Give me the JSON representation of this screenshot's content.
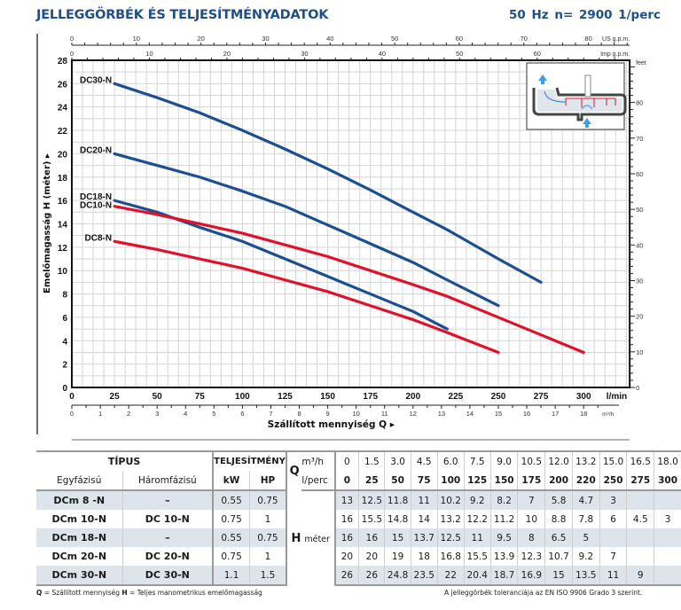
{
  "header": {
    "title": "JELLEGGÖRBÉK ÉS TELJESÍTMÉNYADATOK",
    "subtitle": "50 Hz   n= 2900  1/perc"
  },
  "chart_data": {
    "type": "line",
    "title": "JELLEGGÖRBÉK ÉS TELJESÍTMÉNYADATOK",
    "xlabel": "Szállított mennyiség  Q ▸",
    "ylabel": "Emelőmagasság  H  (méter) ▸",
    "x_unit": "l/min",
    "xlim": [
      0,
      327
    ],
    "ylim": [
      0,
      28
    ],
    "grid": true,
    "x_ticks": [
      0,
      25,
      50,
      75,
      100,
      125,
      150,
      175,
      200,
      225,
      250,
      275,
      300
    ],
    "y_ticks": [
      0,
      2,
      4,
      6,
      8,
      10,
      12,
      14,
      16,
      18,
      20,
      22,
      24,
      26,
      28
    ],
    "secondary_axes": {
      "m3h": {
        "label": "m³/h",
        "ticks": [
          0,
          1,
          2,
          3,
          4,
          5,
          6,
          7,
          8,
          9,
          10,
          11,
          12,
          13,
          14,
          15,
          16,
          17,
          18
        ]
      },
      "us_gpm": {
        "label": "US g.p.m.",
        "ticks": [
          0,
          10,
          20,
          30,
          40,
          50,
          60,
          70,
          80
        ]
      },
      "imp_gpm": {
        "label": "Imp g.p.m.",
        "ticks": [
          0,
          10,
          20,
          30,
          40,
          50,
          60
        ]
      },
      "feet": {
        "label": "feet",
        "ticks": [
          0,
          10,
          20,
          30,
          40,
          50,
          60,
          70,
          80
        ]
      }
    },
    "series": [
      {
        "name": "DC30-N",
        "color": "#1c4f8f",
        "x": [
          25,
          50,
          75,
          100,
          125,
          150,
          175,
          200,
          220,
          250,
          275
        ],
        "y": [
          26,
          24.8,
          23.5,
          22,
          20.4,
          18.7,
          16.9,
          15,
          13.5,
          11,
          9
        ]
      },
      {
        "name": "DC20-N",
        "color": "#1c4f8f",
        "x": [
          25,
          50,
          75,
          100,
          125,
          150,
          175,
          200,
          220,
          250
        ],
        "y": [
          20,
          19,
          18,
          16.8,
          15.5,
          13.9,
          12.3,
          10.7,
          9.2,
          7
        ]
      },
      {
        "name": "DC18-N",
        "color": "#1c4f8f",
        "x": [
          25,
          50,
          75,
          100,
          125,
          150,
          175,
          200,
          220
        ],
        "y": [
          16,
          15,
          13.7,
          12.5,
          11,
          9.5,
          8,
          6.5,
          5
        ]
      },
      {
        "name": "DC10-N",
        "color": "#e3102a",
        "x": [
          25,
          50,
          75,
          100,
          125,
          150,
          175,
          200,
          220,
          250,
          275,
          300
        ],
        "y": [
          15.5,
          14.8,
          14,
          13.2,
          12.2,
          11.2,
          10,
          8.8,
          7.8,
          6,
          4.5,
          3
        ]
      },
      {
        "name": "DC8-N",
        "color": "#e3102a",
        "x": [
          25,
          50,
          75,
          100,
          125,
          150,
          175,
          200,
          220,
          250
        ],
        "y": [
          12.5,
          11.8,
          11,
          10.2,
          9.2,
          8.2,
          7,
          5.8,
          4.7,
          3
        ]
      }
    ]
  },
  "table": {
    "tipus_label": "TÍPUS",
    "teljesitmeny_label": "TELJESÍTMÉNY",
    "q_label": "Q",
    "h_label": "H",
    "h_unit": "méter",
    "col_egyfazisu": "Egyfázisú",
    "col_haromfazisu": "Háromfázisú",
    "col_kw": "kW",
    "col_hp": "HP",
    "unit_m3h": "m³/h",
    "unit_lperc": "l/perc",
    "m3h_values": [
      "0",
      "1.5",
      "3.0",
      "4.5",
      "6.0",
      "7.5",
      "9.0",
      "10.5",
      "12.0",
      "13.2",
      "15.0",
      "16.5",
      "18.0"
    ],
    "lperc_values": [
      "0",
      "25",
      "50",
      "75",
      "100",
      "125",
      "150",
      "175",
      "200",
      "220",
      "250",
      "275",
      "300"
    ],
    "rows": [
      {
        "single": "DCm 8  -N",
        "three": "–",
        "kw": "0.55",
        "hp": "0.75",
        "h": [
          "13",
          "12.5",
          "11.8",
          "11",
          "10.2",
          "9.2",
          "8.2",
          "7",
          "5.8",
          "4.7",
          "3",
          "",
          ""
        ]
      },
      {
        "single": "DCm 10-N",
        "three": "DC 10-N",
        "kw": "0.75",
        "hp": "1",
        "h": [
          "16",
          "15.5",
          "14.8",
          "14",
          "13.2",
          "12.2",
          "11.2",
          "10",
          "8.8",
          "7.8",
          "6",
          "4.5",
          "3"
        ]
      },
      {
        "single": "DCm 18-N",
        "three": "–",
        "kw": "0.55",
        "hp": "0.75",
        "h": [
          "16",
          "16",
          "15",
          "13.7",
          "12.5",
          "11",
          "9.5",
          "8",
          "6.5",
          "5",
          "",
          "",
          ""
        ]
      },
      {
        "single": "DCm 20-N",
        "three": "DC 20-N",
        "kw": "0.75",
        "hp": "1",
        "h": [
          "20",
          "20",
          "19",
          "18",
          "16.8",
          "15.5",
          "13.9",
          "12.3",
          "10.7",
          "9.2",
          "7",
          "",
          ""
        ]
      },
      {
        "single": "DCm 30-N",
        "three": "DC 30-N",
        "kw": "1.1",
        "hp": "1.5",
        "h": [
          "26",
          "26",
          "24.8",
          "23.5",
          "22",
          "20.4",
          "18.7",
          "16.9",
          "15",
          "13.5",
          "11",
          "9",
          ""
        ]
      }
    ]
  },
  "footer": {
    "q_key": "Q",
    "q_text": " = Szállított mennyiség  ",
    "h_key": "H",
    "h_text": " = Teljes manometrikus emelőmagasság",
    "tolerance": "A jelleggörbék toleranciája az EN ISO 9906 Grado 3 szerint."
  }
}
